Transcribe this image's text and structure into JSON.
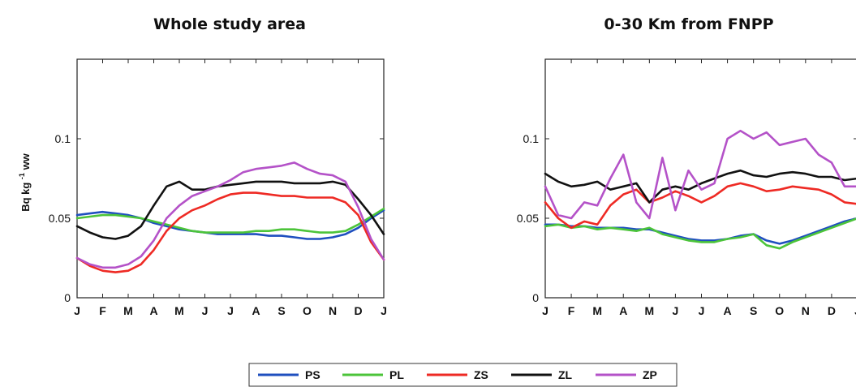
{
  "chart_data": [
    {
      "type": "line",
      "title": "Whole study area",
      "ylabel": "Bq kg-1 ww",
      "xlabel": "",
      "xlim": [
        0,
        12
      ],
      "ylim": [
        0,
        0.15
      ],
      "yticks": [
        0,
        0.05,
        0.1
      ],
      "ytick_labels": [
        "0",
        "0.05",
        "0.1"
      ],
      "month_labels": [
        "J",
        "F",
        "M",
        "A",
        "M",
        "J",
        "J",
        "A",
        "S",
        "O",
        "N",
        "D",
        "J"
      ],
      "series": [
        {
          "name": "PS",
          "color": "#1f4fbf",
          "x": [
            0,
            0.5,
            1,
            1.5,
            2,
            2.5,
            3,
            3.5,
            4,
            4.5,
            5,
            5.5,
            6,
            6.5,
            7,
            7.5,
            8,
            8.5,
            9,
            9.5,
            10,
            10.5,
            11,
            11.5,
            12
          ],
          "y": [
            0.052,
            0.053,
            0.054,
            0.053,
            0.052,
            0.05,
            0.047,
            0.045,
            0.043,
            0.042,
            0.041,
            0.04,
            0.04,
            0.04,
            0.04,
            0.039,
            0.039,
            0.038,
            0.037,
            0.037,
            0.038,
            0.04,
            0.044,
            0.05,
            0.055
          ]
        },
        {
          "name": "PL",
          "color": "#4cc43a",
          "x": [
            0,
            0.5,
            1,
            1.5,
            2,
            2.5,
            3,
            3.5,
            4,
            4.5,
            5,
            5.5,
            6,
            6.5,
            7,
            7.5,
            8,
            8.5,
            9,
            9.5,
            10,
            10.5,
            11,
            11.5,
            12
          ],
          "y": [
            0.05,
            0.051,
            0.052,
            0.052,
            0.051,
            0.05,
            0.048,
            0.046,
            0.044,
            0.042,
            0.041,
            0.041,
            0.041,
            0.041,
            0.042,
            0.042,
            0.043,
            0.043,
            0.042,
            0.041,
            0.041,
            0.042,
            0.046,
            0.051,
            0.056
          ]
        },
        {
          "name": "ZS",
          "color": "#ee2a24",
          "x": [
            0,
            0.5,
            1,
            1.5,
            2,
            2.5,
            3,
            3.5,
            4,
            4.5,
            5,
            5.5,
            6,
            6.5,
            7,
            7.5,
            8,
            8.5,
            9,
            9.5,
            10,
            10.5,
            11,
            11.5,
            12
          ],
          "y": [
            0.025,
            0.02,
            0.017,
            0.016,
            0.017,
            0.021,
            0.03,
            0.042,
            0.05,
            0.055,
            0.058,
            0.062,
            0.065,
            0.066,
            0.066,
            0.065,
            0.064,
            0.064,
            0.063,
            0.063,
            0.063,
            0.06,
            0.052,
            0.035,
            0.024
          ]
        },
        {
          "name": "ZL",
          "color": "#111111",
          "x": [
            0,
            0.5,
            1,
            1.5,
            2,
            2.5,
            3,
            3.5,
            4,
            4.5,
            5,
            5.5,
            6,
            6.5,
            7,
            7.5,
            8,
            8.5,
            9,
            9.5,
            10,
            10.5,
            11,
            11.5,
            12
          ],
          "y": [
            0.045,
            0.041,
            0.038,
            0.037,
            0.039,
            0.045,
            0.058,
            0.07,
            0.073,
            0.068,
            0.068,
            0.07,
            0.071,
            0.072,
            0.073,
            0.073,
            0.073,
            0.072,
            0.072,
            0.072,
            0.073,
            0.071,
            0.062,
            0.052,
            0.04
          ]
        },
        {
          "name": "ZP",
          "color": "#b452c8",
          "x": [
            0,
            0.5,
            1,
            1.5,
            2,
            2.5,
            3,
            3.5,
            4,
            4.5,
            5,
            5.5,
            6,
            6.5,
            7,
            7.5,
            8,
            8.5,
            9,
            9.5,
            10,
            10.5,
            11,
            11.5,
            12
          ],
          "y": [
            0.025,
            0.021,
            0.019,
            0.019,
            0.021,
            0.026,
            0.036,
            0.05,
            0.058,
            0.064,
            0.067,
            0.07,
            0.074,
            0.079,
            0.081,
            0.082,
            0.083,
            0.085,
            0.081,
            0.078,
            0.077,
            0.073,
            0.057,
            0.037,
            0.024
          ]
        }
      ]
    },
    {
      "type": "line",
      "title": "0-30 Km from FNPP",
      "ylabel": "",
      "xlabel": "",
      "xlim": [
        0,
        12
      ],
      "ylim": [
        0,
        0.15
      ],
      "yticks": [
        0,
        0.05,
        0.1
      ],
      "ytick_labels": [
        "0",
        "0.05",
        "0.1"
      ],
      "month_labels": [
        "J",
        "F",
        "M",
        "A",
        "M",
        "J",
        "J",
        "A",
        "S",
        "O",
        "N",
        "D",
        "J"
      ],
      "series": [
        {
          "name": "PS",
          "color": "#1f4fbf",
          "x": [
            0,
            0.5,
            1,
            1.5,
            2,
            2.5,
            3,
            3.5,
            4,
            4.5,
            5,
            5.5,
            6,
            6.5,
            7,
            7.5,
            8,
            8.5,
            9,
            9.5,
            10,
            10.5,
            11,
            11.5,
            12
          ],
          "y": [
            0.046,
            0.046,
            0.045,
            0.045,
            0.044,
            0.044,
            0.044,
            0.043,
            0.043,
            0.041,
            0.039,
            0.037,
            0.036,
            0.036,
            0.037,
            0.039,
            0.04,
            0.036,
            0.034,
            0.036,
            0.039,
            0.042,
            0.045,
            0.048,
            0.05
          ]
        },
        {
          "name": "PL",
          "color": "#4cc43a",
          "x": [
            0,
            0.5,
            1,
            1.5,
            2,
            2.5,
            3,
            3.5,
            4,
            4.5,
            5,
            5.5,
            6,
            6.5,
            7,
            7.5,
            8,
            8.5,
            9,
            9.5,
            10,
            10.5,
            11,
            11.5,
            12
          ],
          "y": [
            0.045,
            0.046,
            0.044,
            0.045,
            0.043,
            0.044,
            0.043,
            0.042,
            0.044,
            0.04,
            0.038,
            0.036,
            0.035,
            0.035,
            0.037,
            0.038,
            0.04,
            0.033,
            0.031,
            0.035,
            0.038,
            0.041,
            0.044,
            0.047,
            0.05
          ]
        },
        {
          "name": "ZS",
          "color": "#ee2a24",
          "x": [
            0,
            0.5,
            1,
            1.5,
            2,
            2.5,
            3,
            3.5,
            4,
            4.5,
            5,
            5.5,
            6,
            6.5,
            7,
            7.5,
            8,
            8.5,
            9,
            9.5,
            10,
            10.5,
            11,
            11.5,
            12
          ],
          "y": [
            0.06,
            0.05,
            0.044,
            0.048,
            0.046,
            0.058,
            0.065,
            0.068,
            0.06,
            0.063,
            0.067,
            0.064,
            0.06,
            0.064,
            0.07,
            0.072,
            0.07,
            0.067,
            0.068,
            0.07,
            0.069,
            0.068,
            0.065,
            0.06,
            0.059
          ]
        },
        {
          "name": "ZL",
          "color": "#111111",
          "x": [
            0,
            0.5,
            1,
            1.5,
            2,
            2.5,
            3,
            3.5,
            4,
            4.5,
            5,
            5.5,
            6,
            6.5,
            7,
            7.5,
            8,
            8.5,
            9,
            9.5,
            10,
            10.5,
            11,
            11.5,
            12
          ],
          "y": [
            0.078,
            0.073,
            0.07,
            0.071,
            0.073,
            0.068,
            0.07,
            0.072,
            0.06,
            0.068,
            0.07,
            0.068,
            0.072,
            0.075,
            0.078,
            0.08,
            0.077,
            0.076,
            0.078,
            0.079,
            0.078,
            0.076,
            0.076,
            0.074,
            0.075
          ]
        },
        {
          "name": "ZP",
          "color": "#b452c8",
          "x": [
            0,
            0.5,
            1,
            1.5,
            2,
            2.5,
            3,
            3.5,
            4,
            4.5,
            5,
            5.5,
            6,
            6.5,
            7,
            7.5,
            8,
            8.5,
            9,
            9.5,
            10,
            10.5,
            11,
            11.5,
            12
          ],
          "y": [
            0.07,
            0.052,
            0.05,
            0.06,
            0.058,
            0.075,
            0.09,
            0.06,
            0.05,
            0.088,
            0.055,
            0.08,
            0.068,
            0.072,
            0.1,
            0.105,
            0.1,
            0.104,
            0.096,
            0.098,
            0.1,
            0.09,
            0.085,
            0.07,
            0.07
          ]
        }
      ]
    }
  ],
  "legend": {
    "entries": [
      {
        "label": "PS",
        "color": "#1f4fbf"
      },
      {
        "label": "PL",
        "color": "#4cc43a"
      },
      {
        "label": "ZS",
        "color": "#ee2a24"
      },
      {
        "label": "ZL",
        "color": "#111111"
      },
      {
        "label": "ZP",
        "color": "#b452c8"
      }
    ]
  }
}
